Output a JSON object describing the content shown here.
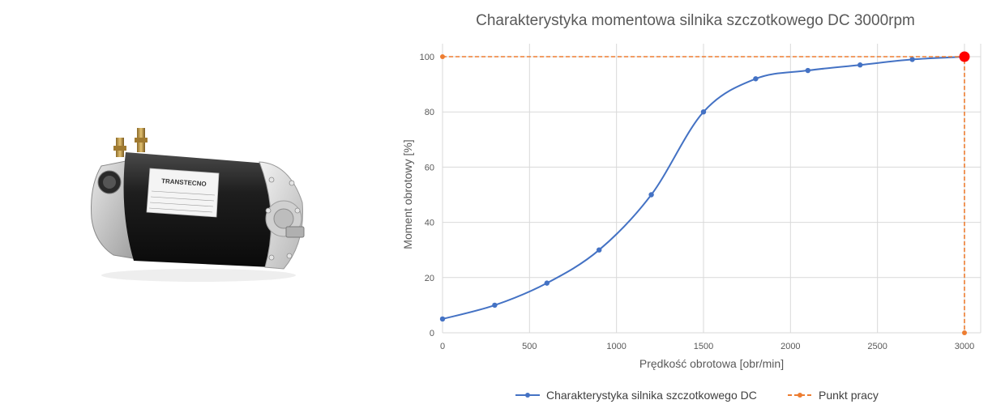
{
  "chart_data": {
    "type": "line",
    "title": "Charakterystyka momentowa silnika szczotkowego DC 3000rpm",
    "xlabel": "Prędkość obrotowa [obr/min]",
    "ylabel": "Moment obrotowy [%]",
    "xlim": [
      0,
      3000
    ],
    "ylim": [
      0,
      100
    ],
    "xticks": [
      "0",
      "500",
      "1000",
      "1500",
      "2000",
      "2500",
      "3000"
    ],
    "yticks": [
      "0",
      "20",
      "40",
      "60",
      "80",
      "100"
    ],
    "grid": true,
    "legend_position": "bottom",
    "series": [
      {
        "name": "Charakterystyka silnika szczotkowego DC",
        "color": "#4472c4",
        "style": "solid-smooth",
        "x": [
          0,
          300,
          600,
          900,
          1200,
          1500,
          1800,
          2100,
          2400,
          2700,
          3000
        ],
        "y": [
          5,
          10,
          18,
          30,
          50,
          80,
          92,
          95,
          97,
          99,
          100
        ]
      },
      {
        "name": "Punkt pracy",
        "color": "#ed7d31",
        "style": "dashed",
        "x": [
          0,
          3000,
          3000
        ],
        "y": [
          100,
          100,
          0
        ]
      }
    ],
    "highlight_point": {
      "x": 3000,
      "y": 100,
      "color": "#ff0000"
    }
  },
  "photo": {
    "icon": "dc-motor-photo",
    "brand_text": "TRANSTECNO"
  }
}
